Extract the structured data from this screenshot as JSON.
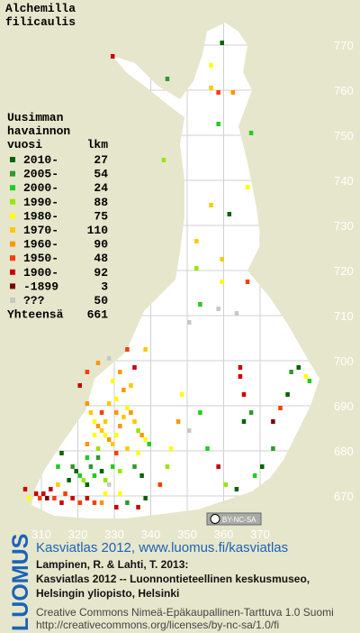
{
  "title_lines": [
    "Alchemilla",
    "filicaulis"
  ],
  "legend": {
    "heading": [
      "Uusimman",
      "havainnon",
      "vuosi"
    ],
    "count_heading": "lkm",
    "entries": [
      {
        "label": "2010-",
        "count": 27,
        "color": "#006400"
      },
      {
        "label": "2005-",
        "count": 54,
        "color": "#2e9a2e"
      },
      {
        "label": "2000-",
        "count": 24,
        "color": "#22cc22"
      },
      {
        "label": "1990-",
        "count": 88,
        "color": "#99e600"
      },
      {
        "label": "1980-",
        "count": 75,
        "color": "#ffff00"
      },
      {
        "label": "1970-",
        "count": 110,
        "color": "#ffc800"
      },
      {
        "label": "1960-",
        "count": 90,
        "color": "#ff9600"
      },
      {
        "label": "1950-",
        "count": 48,
        "color": "#ff3c00"
      },
      {
        "label": "1900-",
        "count": 92,
        "color": "#cc0000"
      },
      {
        "label": "-1899",
        "count": 3,
        "color": "#7a0000"
      },
      {
        "label": "???",
        "count": 50,
        "color": "#c8c8c8"
      }
    ],
    "total_label": "Yhteensä",
    "total": 661
  },
  "xticks": [
    310,
    320,
    330,
    340,
    350,
    360,
    370
  ],
  "yticks": [
    670,
    680,
    690,
    700,
    710,
    720,
    730,
    740,
    750,
    760,
    770
  ],
  "license_badge": "BY-NC-SA",
  "cells": [
    [
      329,
      767,
      8
    ],
    [
      356,
      765,
      4
    ],
    [
      344,
      762,
      1
    ],
    [
      358,
      759,
      7
    ],
    [
      362,
      759,
      6
    ],
    [
      356,
      760,
      5
    ],
    [
      359,
      770,
      0
    ],
    [
      358,
      752,
      2
    ],
    [
      367,
      750,
      2
    ],
    [
      343,
      744,
      3
    ],
    [
      366,
      738,
      4
    ],
    [
      356,
      734,
      5
    ],
    [
      361,
      732,
      0
    ],
    [
      352,
      726,
      5
    ],
    [
      359,
      717,
      4
    ],
    [
      366,
      717,
      7
    ],
    [
      359,
      722,
      5
    ],
    [
      352,
      720,
      3
    ],
    [
      353,
      712,
      2
    ],
    [
      358,
      711,
      10
    ],
    [
      363,
      710,
      10
    ],
    [
      350,
      708,
      10
    ],
    [
      364,
      698,
      8
    ],
    [
      364,
      696,
      8
    ],
    [
      365,
      692,
      8
    ],
    [
      380,
      698,
      0
    ],
    [
      378,
      697,
      1
    ],
    [
      382,
      696,
      4
    ],
    [
      377,
      692,
      0
    ],
    [
      383,
      695,
      2
    ],
    [
      365,
      686,
      0
    ],
    [
      367,
      688,
      1
    ],
    [
      373,
      686,
      9
    ],
    [
      375,
      689,
      7
    ],
    [
      373,
      680,
      1
    ],
    [
      370,
      676,
      0
    ],
    [
      368,
      674,
      2
    ],
    [
      363,
      671,
      0
    ],
    [
      360,
      672,
      3
    ],
    [
      358,
      676,
      8
    ],
    [
      355,
      680,
      2
    ],
    [
      350,
      684,
      10
    ],
    [
      353,
      688,
      2
    ],
    [
      348,
      692,
      4
    ],
    [
      347,
      686,
      6
    ],
    [
      345,
      680,
      4
    ],
    [
      344,
      676,
      3
    ],
    [
      342,
      672,
      7
    ],
    [
      338,
      669,
      0
    ],
    [
      336,
      667,
      8
    ],
    [
      333,
      668,
      1
    ],
    [
      331,
      670,
      4
    ],
    [
      322,
      690,
      6
    ],
    [
      323,
      688,
      5
    ],
    [
      324,
      686,
      4
    ],
    [
      325,
      685,
      6
    ],
    [
      326,
      684,
      5
    ],
    [
      327,
      683,
      4
    ],
    [
      328,
      682,
      6
    ],
    [
      329,
      681,
      5
    ],
    [
      330,
      683,
      4
    ],
    [
      331,
      685,
      6
    ],
    [
      332,
      687,
      5
    ],
    [
      333,
      689,
      4
    ],
    [
      334,
      688,
      6
    ],
    [
      335,
      686,
      5
    ],
    [
      336,
      684,
      3
    ],
    [
      337,
      683,
      6
    ],
    [
      338,
      682,
      4
    ],
    [
      326,
      688,
      7
    ],
    [
      328,
      690,
      5
    ],
    [
      330,
      691,
      4
    ],
    [
      332,
      693,
      6
    ],
    [
      334,
      694,
      5
    ],
    [
      330,
      688,
      6
    ],
    [
      327,
      686,
      5
    ],
    [
      324,
      683,
      4
    ],
    [
      322,
      681,
      6
    ],
    [
      325,
      680,
      3
    ],
    [
      330,
      679,
      7
    ],
    [
      333,
      680,
      5
    ],
    [
      336,
      679,
      4
    ],
    [
      339,
      681,
      2
    ],
    [
      320,
      694,
      8
    ],
    [
      322,
      697,
      7
    ],
    [
      325,
      699,
      6
    ],
    [
      328,
      700,
      10
    ],
    [
      331,
      697,
      6
    ],
    [
      335,
      698,
      8
    ],
    [
      338,
      702,
      5
    ],
    [
      333,
      702,
      7
    ],
    [
      329,
      695,
      4
    ],
    [
      318,
      676,
      1
    ],
    [
      319,
      675,
      0
    ],
    [
      320,
      674,
      2
    ],
    [
      321,
      673,
      3
    ],
    [
      322,
      672,
      0
    ],
    [
      323,
      676,
      1
    ],
    [
      324,
      674,
      2
    ],
    [
      326,
      675,
      0
    ],
    [
      327,
      673,
      3
    ],
    [
      317,
      673,
      0
    ],
    [
      325,
      678,
      1
    ],
    [
      322,
      678,
      2
    ],
    [
      329,
      676,
      2
    ],
    [
      331,
      675,
      3
    ],
    [
      335,
      676,
      1
    ],
    [
      337,
      674,
      0
    ],
    [
      328,
      672,
      10
    ],
    [
      315,
      679,
      0
    ],
    [
      314,
      676,
      2
    ],
    [
      308,
      670,
      8
    ],
    [
      309,
      669,
      7
    ],
    [
      310,
      670,
      8
    ],
    [
      311,
      669,
      9
    ],
    [
      312,
      671,
      8
    ],
    [
      313,
      669,
      7
    ],
    [
      315,
      668,
      8
    ],
    [
      316,
      670,
      7
    ],
    [
      318,
      669,
      8
    ],
    [
      320,
      668,
      7
    ],
    [
      322,
      669,
      8
    ],
    [
      324,
      668,
      7
    ],
    [
      305,
      671,
      8
    ],
    [
      306,
      669,
      4
    ],
    [
      326,
      668,
      6
    ],
    [
      330,
      667,
      8
    ],
    [
      327,
      670,
      4
    ],
    [
      314,
      672,
      5
    ]
  ],
  "footer": {
    "brand": "LUOMUS",
    "link": "Kasviatlas 2012, www.luomus.fi/kasviatlas",
    "citation": [
      "Lampinen, R. & Lahti, T. 2013:",
      "Kasviatlas 2012 -- Luonnontieteellinen keskusmuseo,",
      "Helsingin yliopisto, Helsinki"
    ],
    "license": [
      "Creative Commons Nimeä-Epäkaupallinen-Tarttuva 1.0 Suomi",
      "http://creativecommons.org/licenses/by-nc-sa/1.0/fi"
    ]
  }
}
